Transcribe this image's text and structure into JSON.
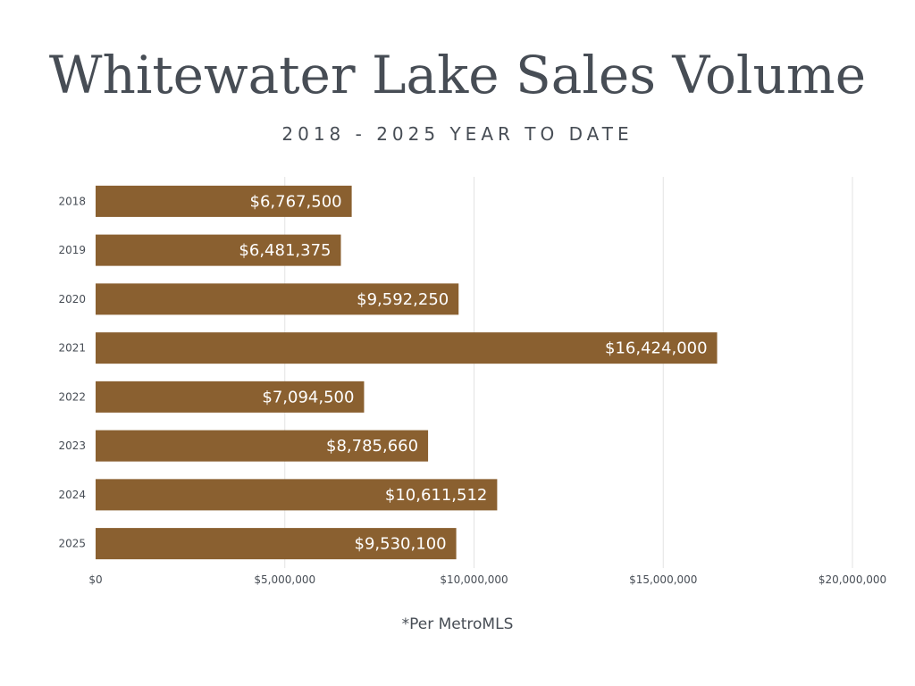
{
  "chart_data": {
    "type": "bar",
    "orientation": "horizontal",
    "title": "Whitewater Lake Sales Volume",
    "subtitle": "2018 - 2025 YEAR TO DATE",
    "categories": [
      "2018",
      "2019",
      "2020",
      "2021",
      "2022",
      "2023",
      "2024",
      "2025"
    ],
    "values": [
      6767500,
      6481375,
      9592250,
      16424000,
      7094500,
      8785660,
      10611512,
      9530100
    ],
    "value_labels": [
      "$6,767,500",
      "$6,481,375",
      "$9,592,250",
      "$16,424,000",
      "$7,094,500",
      "$8,785,660",
      "$10,611,512",
      "$9,530,100"
    ],
    "xlim": [
      0,
      20000000
    ],
    "x_ticks": [
      0,
      5000000,
      10000000,
      15000000,
      20000000
    ],
    "x_tick_labels": [
      "$0",
      "$5,000,000",
      "$10,000,000",
      "$15,000,000",
      "$20,000,000"
    ],
    "grid": "vertical",
    "bar_color": "#8a6030",
    "grid_color": "#e3e3e3",
    "text_color": "#474d55"
  },
  "footnote": "*Per MetroMLS"
}
